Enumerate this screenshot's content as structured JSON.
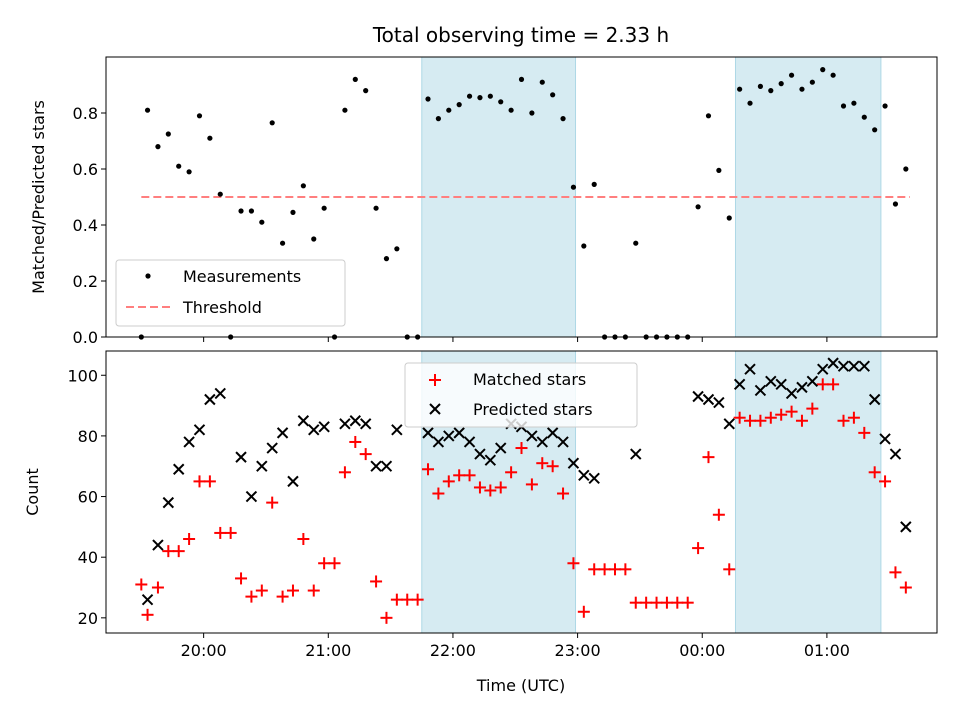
{
  "chart_data": [
    {
      "type": "scatter",
      "title": "Total observing time = 2.33 h",
      "xlabel": "",
      "ylabel": "Matched/Predicted stars",
      "ylim": [
        0,
        1.0
      ],
      "yticks": [
        0.0,
        0.2,
        0.4,
        0.6,
        0.8
      ],
      "ytick_labels": [
        "0.0",
        "0.2",
        "0.4",
        "0.6",
        "0.8"
      ],
      "legend": {
        "position": "lower-left",
        "entries": [
          "Measurements",
          "Threshold"
        ]
      },
      "threshold": {
        "name": "Threshold",
        "value": 0.5,
        "x_start": "19:30",
        "x_end": "01:40",
        "color": "#ff7f7f",
        "style": "dashed"
      },
      "series": [
        {
          "name": "Measurements",
          "color": "#000000",
          "marker": "dot",
          "points": [
            [
              "19:30",
              0.0
            ],
            [
              "19:33",
              0.81
            ],
            [
              "19:38",
              0.68
            ],
            [
              "19:43",
              0.725
            ],
            [
              "19:48",
              0.61
            ],
            [
              "19:53",
              0.59
            ],
            [
              "19:58",
              0.79
            ],
            [
              "20:03",
              0.71
            ],
            [
              "20:08",
              0.51
            ],
            [
              "20:13",
              0.0
            ],
            [
              "20:18",
              0.45
            ],
            [
              "20:23",
              0.45
            ],
            [
              "20:28",
              0.41
            ],
            [
              "20:33",
              0.765
            ],
            [
              "20:38",
              0.335
            ],
            [
              "20:43",
              0.445
            ],
            [
              "20:48",
              0.54
            ],
            [
              "20:53",
              0.35
            ],
            [
              "20:58",
              0.46
            ],
            [
              "21:03",
              0.0
            ],
            [
              "21:08",
              0.81
            ],
            [
              "21:13",
              0.92
            ],
            [
              "21:18",
              0.88
            ],
            [
              "21:23",
              0.46
            ],
            [
              "21:28",
              0.28
            ],
            [
              "21:33",
              0.315
            ],
            [
              "21:38",
              0.0
            ],
            [
              "21:43",
              0.0
            ],
            [
              "21:48",
              0.85
            ],
            [
              "21:53",
              0.78
            ],
            [
              "21:58",
              0.81
            ],
            [
              "22:03",
              0.83
            ],
            [
              "22:08",
              0.86
            ],
            [
              "22:13",
              0.855
            ],
            [
              "22:18",
              0.86
            ],
            [
              "22:23",
              0.84
            ],
            [
              "22:28",
              0.81
            ],
            [
              "22:33",
              0.92
            ],
            [
              "22:38",
              0.8
            ],
            [
              "22:43",
              0.91
            ],
            [
              "22:48",
              0.865
            ],
            [
              "22:53",
              0.78
            ],
            [
              "22:58",
              0.535
            ],
            [
              "23:03",
              0.325
            ],
            [
              "23:08",
              0.545
            ],
            [
              "23:13",
              0.0
            ],
            [
              "23:18",
              0.0
            ],
            [
              "23:23",
              0.0
            ],
            [
              "23:28",
              0.335
            ],
            [
              "23:33",
              0.0
            ],
            [
              "23:38",
              0.0
            ],
            [
              "23:43",
              0.0
            ],
            [
              "23:48",
              0.0
            ],
            [
              "23:53",
              0.0
            ],
            [
              "23:58",
              0.465
            ],
            [
              "00:03",
              0.79
            ],
            [
              "00:08",
              0.595
            ],
            [
              "00:13",
              0.425
            ],
            [
              "00:18",
              0.885
            ],
            [
              "00:23",
              0.835
            ],
            [
              "00:28",
              0.895
            ],
            [
              "00:33",
              0.88
            ],
            [
              "00:38",
              0.905
            ],
            [
              "00:43",
              0.935
            ],
            [
              "00:48",
              0.885
            ],
            [
              "00:53",
              0.91
            ],
            [
              "00:58",
              0.955
            ],
            [
              "01:03",
              0.935
            ],
            [
              "01:08",
              0.825
            ],
            [
              "01:13",
              0.835
            ],
            [
              "01:18",
              0.785
            ],
            [
              "01:23",
              0.74
            ],
            [
              "01:28",
              0.825
            ],
            [
              "01:33",
              0.475
            ],
            [
              "01:38",
              0.6
            ]
          ]
        }
      ]
    },
    {
      "type": "scatter",
      "title": "",
      "xlabel": "Time (UTC)",
      "ylabel": "Count",
      "ylim": [
        15,
        108
      ],
      "yticks": [
        20,
        40,
        60,
        80,
        100
      ],
      "ytick_labels": [
        "20",
        "40",
        "60",
        "80",
        "100"
      ],
      "legend": {
        "position": "top-center",
        "entries": [
          "Matched stars",
          "Predicted stars"
        ]
      },
      "series": [
        {
          "name": "Matched stars",
          "color": "#ff0000",
          "marker": "plus",
          "points": [
            [
              "19:30",
              31
            ],
            [
              "19:33",
              21
            ],
            [
              "19:38",
              30
            ],
            [
              "19:43",
              42
            ],
            [
              "19:48",
              42
            ],
            [
              "19:53",
              46
            ],
            [
              "19:58",
              65
            ],
            [
              "20:03",
              65
            ],
            [
              "20:08",
              48
            ],
            [
              "20:13",
              48
            ],
            [
              "20:18",
              33
            ],
            [
              "20:23",
              27
            ],
            [
              "20:28",
              29
            ],
            [
              "20:33",
              58
            ],
            [
              "20:38",
              27
            ],
            [
              "20:43",
              29
            ],
            [
              "20:48",
              46
            ],
            [
              "20:53",
              29
            ],
            [
              "20:58",
              38
            ],
            [
              "21:03",
              38
            ],
            [
              "21:08",
              68
            ],
            [
              "21:13",
              78
            ],
            [
              "21:18",
              74
            ],
            [
              "21:23",
              32
            ],
            [
              "21:28",
              20
            ],
            [
              "21:33",
              26
            ],
            [
              "21:38",
              26
            ],
            [
              "21:43",
              26
            ],
            [
              "21:48",
              69
            ],
            [
              "21:53",
              61
            ],
            [
              "21:58",
              65
            ],
            [
              "22:03",
              67
            ],
            [
              "22:08",
              67
            ],
            [
              "22:13",
              63
            ],
            [
              "22:18",
              62
            ],
            [
              "22:23",
              63
            ],
            [
              "22:28",
              68
            ],
            [
              "22:33",
              76
            ],
            [
              "22:38",
              64
            ],
            [
              "22:43",
              71
            ],
            [
              "22:48",
              70
            ],
            [
              "22:53",
              61
            ],
            [
              "22:58",
              38
            ],
            [
              "23:03",
              22
            ],
            [
              "23:08",
              36
            ],
            [
              "23:13",
              36
            ],
            [
              "23:18",
              36
            ],
            [
              "23:23",
              36
            ],
            [
              "23:28",
              25
            ],
            [
              "23:33",
              25
            ],
            [
              "23:38",
              25
            ],
            [
              "23:43",
              25
            ],
            [
              "23:48",
              25
            ],
            [
              "23:53",
              25
            ],
            [
              "23:58",
              43
            ],
            [
              "00:03",
              73
            ],
            [
              "00:08",
              54
            ],
            [
              "00:13",
              36
            ],
            [
              "00:18",
              86
            ],
            [
              "00:23",
              85
            ],
            [
              "00:28",
              85
            ],
            [
              "00:33",
              86
            ],
            [
              "00:38",
              87
            ],
            [
              "00:43",
              88
            ],
            [
              "00:48",
              85
            ],
            [
              "00:53",
              89
            ],
            [
              "00:58",
              97
            ],
            [
              "01:03",
              97
            ],
            [
              "01:08",
              85
            ],
            [
              "01:13",
              86
            ],
            [
              "01:18",
              81
            ],
            [
              "01:23",
              68
            ],
            [
              "01:28",
              65
            ],
            [
              "01:33",
              35
            ],
            [
              "01:38",
              30
            ]
          ]
        },
        {
          "name": "Predicted stars",
          "color": "#000000",
          "marker": "x",
          "points": [
            [
              "19:33",
              26
            ],
            [
              "19:38",
              44
            ],
            [
              "19:43",
              58
            ],
            [
              "19:48",
              69
            ],
            [
              "19:53",
              78
            ],
            [
              "19:58",
              82
            ],
            [
              "20:03",
              92
            ],
            [
              "20:08",
              94
            ],
            [
              "20:18",
              73
            ],
            [
              "20:23",
              60
            ],
            [
              "20:28",
              70
            ],
            [
              "20:33",
              76
            ],
            [
              "20:38",
              81
            ],
            [
              "20:43",
              65
            ],
            [
              "20:48",
              85
            ],
            [
              "20:53",
              82
            ],
            [
              "20:58",
              83
            ],
            [
              "21:08",
              84
            ],
            [
              "21:13",
              85
            ],
            [
              "21:18",
              84
            ],
            [
              "21:23",
              70
            ],
            [
              "21:28",
              70
            ],
            [
              "21:33",
              82
            ],
            [
              "21:48",
              81
            ],
            [
              "21:53",
              78
            ],
            [
              "21:58",
              80
            ],
            [
              "22:03",
              81
            ],
            [
              "22:08",
              78
            ],
            [
              "22:13",
              74
            ],
            [
              "22:18",
              72
            ],
            [
              "22:23",
              76
            ],
            [
              "22:28",
              84
            ],
            [
              "22:33",
              83
            ],
            [
              "22:38",
              80
            ],
            [
              "22:43",
              78
            ],
            [
              "22:48",
              81
            ],
            [
              "22:53",
              78
            ],
            [
              "22:58",
              71
            ],
            [
              "23:03",
              67
            ],
            [
              "23:08",
              66
            ],
            [
              "23:28",
              74
            ],
            [
              "23:58",
              93
            ],
            [
              "00:03",
              92
            ],
            [
              "00:08",
              91
            ],
            [
              "00:13",
              84
            ],
            [
              "00:18",
              97
            ],
            [
              "00:23",
              102
            ],
            [
              "00:28",
              95
            ],
            [
              "00:33",
              98
            ],
            [
              "00:38",
              97
            ],
            [
              "00:43",
              94
            ],
            [
              "00:48",
              96
            ],
            [
              "00:53",
              98
            ],
            [
              "00:58",
              102
            ],
            [
              "01:03",
              104
            ],
            [
              "01:08",
              103
            ],
            [
              "01:13",
              103
            ],
            [
              "01:18",
              103
            ],
            [
              "01:23",
              92
            ],
            [
              "01:28",
              79
            ],
            [
              "01:33",
              74
            ],
            [
              "01:38",
              50
            ]
          ]
        }
      ]
    }
  ],
  "shared_x": {
    "type": "time",
    "xlim": [
      "19:13",
      "01:53"
    ],
    "ticks": [
      "20:00",
      "21:00",
      "22:00",
      "23:00",
      "00:00",
      "01:00"
    ],
    "tick_labels": [
      "20:00",
      "21:00",
      "22:00",
      "23:00",
      "00:00",
      "01:00"
    ]
  },
  "highlight_windows": [
    {
      "start": "21:45",
      "end": "22:59",
      "color": "#add8e6"
    },
    {
      "start": "00:16",
      "end": "01:26",
      "color": "#add8e6"
    }
  ]
}
